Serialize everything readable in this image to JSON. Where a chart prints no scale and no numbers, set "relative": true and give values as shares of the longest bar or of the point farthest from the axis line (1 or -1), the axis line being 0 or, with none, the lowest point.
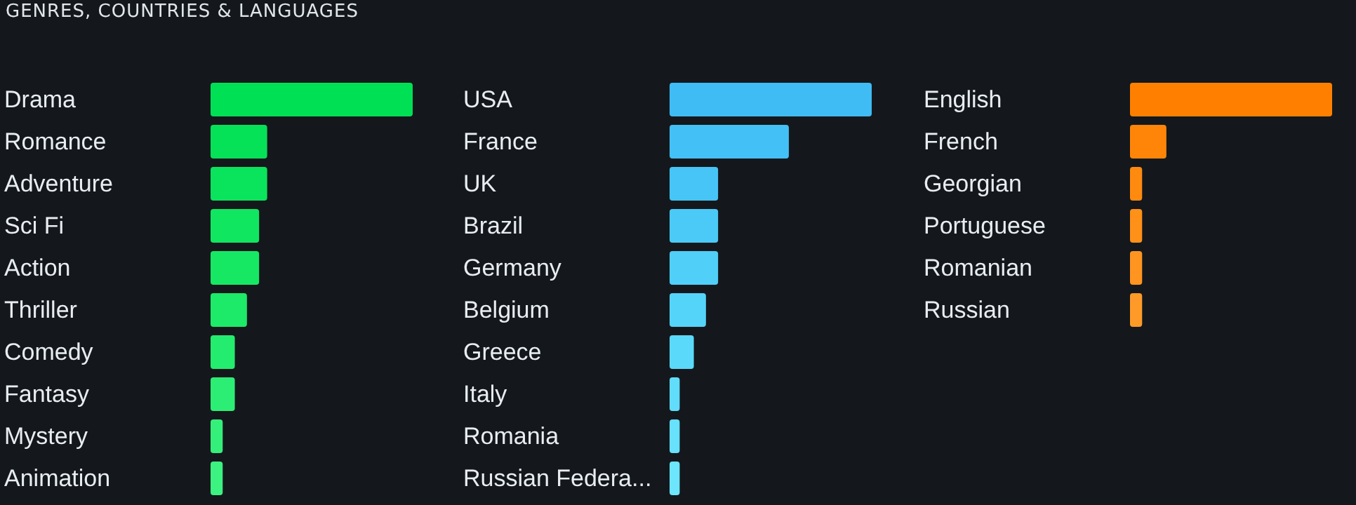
{
  "chart_data": [
    {
      "type": "bar",
      "title": "GENRES, COUNTRIES & LANGUAGES",
      "orientation": "horizontal",
      "relative": true,
      "categories": [
        "Drama",
        "Romance",
        "Adventure",
        "Sci Fi",
        "Action",
        "Thriller",
        "Comedy",
        "Fantasy",
        "Mystery",
        "Animation"
      ],
      "values": [
        1,
        0.28,
        0.28,
        0.24,
        0.24,
        0.18,
        0.12,
        0.12,
        0.06,
        0.06
      ],
      "colors": [
        "#00e054",
        "#05e258",
        "#0ae45c",
        "#10e660",
        "#16e864",
        "#1cea68",
        "#24ec6e",
        "#2cee74",
        "#34f07a",
        "#3cf280"
      ]
    },
    {
      "type": "bar",
      "orientation": "horizontal",
      "relative": true,
      "categories": [
        "USA",
        "France",
        "UK",
        "Brazil",
        "Germany",
        "Belgium",
        "Greece",
        "Italy",
        "Romania",
        "Russian Federa..."
      ],
      "values": [
        1,
        0.59,
        0.24,
        0.24,
        0.24,
        0.18,
        0.12,
        0.05,
        0.05,
        0.05
      ],
      "colors": [
        "#40bcf4",
        "#43c0f5",
        "#47c5f6",
        "#4bcaf7",
        "#50cff8",
        "#55d4f9",
        "#5bd9fa",
        "#61ddfb",
        "#67e1fc",
        "#6de5fd"
      ]
    },
    {
      "type": "bar",
      "orientation": "horizontal",
      "relative": true,
      "categories": [
        "English",
        "French",
        "Georgian",
        "Portuguese",
        "Romanian",
        "Russian"
      ],
      "values": [
        1,
        0.18,
        0.06,
        0.06,
        0.06,
        0.06
      ],
      "colors": [
        "#ff8000",
        "#ff8508",
        "#ff8a10",
        "#ff9018",
        "#ff9520",
        "#ff9a28"
      ]
    }
  ]
}
